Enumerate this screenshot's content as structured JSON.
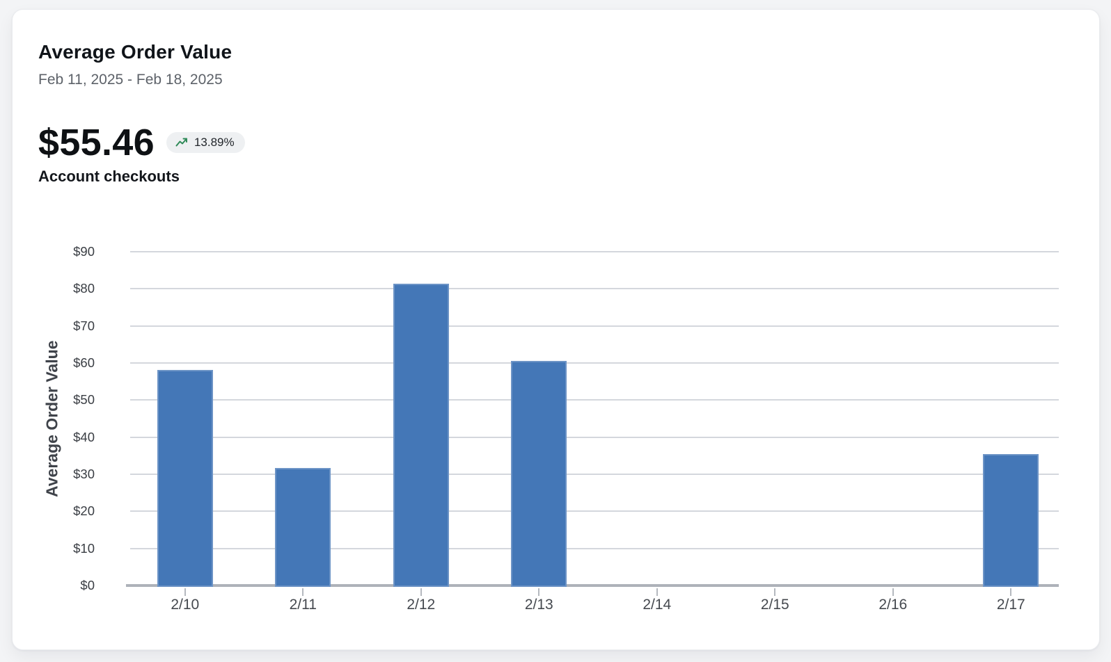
{
  "card": {
    "title": "Average Order Value",
    "date_range": "Feb 11, 2025 - Feb 18, 2025",
    "metric": {
      "value": "$55.46",
      "change": "13.89%",
      "label": "Account checkouts",
      "trend_icon": "trending-up-icon",
      "trend_direction": "up"
    }
  },
  "colors": {
    "page_bg": "#f3f4f6",
    "bar_color": "#4477b7",
    "grid_color": "#d4d7dd",
    "axis_color": "#aeb2b9",
    "badge_bg": "#eef0f2",
    "trend_green": "#2f8a58"
  },
  "chart_data": {
    "type": "bar",
    "categories": [
      "2/10",
      "2/11",
      "2/12",
      "2/13",
      "2/14",
      "2/15",
      "2/16",
      "2/17"
    ],
    "values": [
      58.2,
      31.6,
      81.3,
      60.5,
      0,
      0,
      0,
      35.5
    ],
    "title": "Average Order Value",
    "xlabel": "",
    "ylabel": "Average Order Value",
    "ylim": [
      0,
      90
    ],
    "ytick_step": 10,
    "ytick_prefix": "$",
    "yticks": [
      "$0",
      "$10",
      "$20",
      "$30",
      "$40",
      "$50",
      "$60",
      "$70",
      "$80",
      "$90"
    ],
    "grid": true,
    "legend": false,
    "bar_color": "#4477b7"
  }
}
